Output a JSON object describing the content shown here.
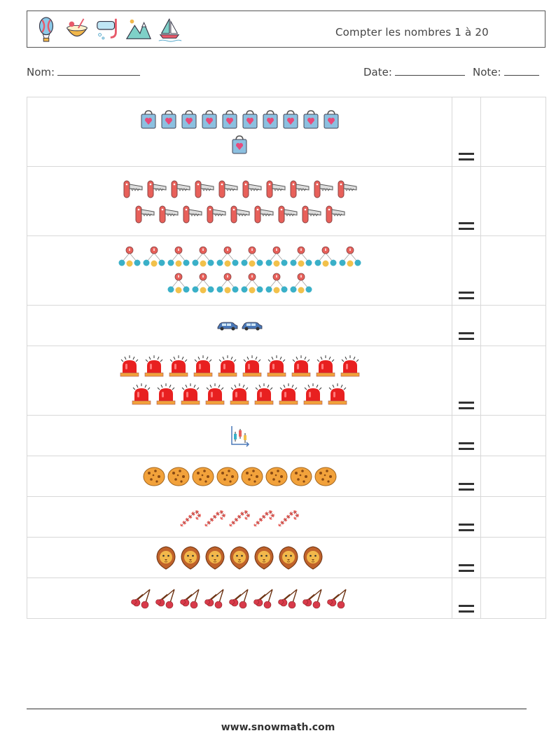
{
  "header": {
    "title": "Compter les nombres 1 à 20",
    "icons": [
      "hot-air-balloon-icon",
      "coconut-drink-icon",
      "snorkel-mask-icon",
      "mountains-icon",
      "sailboat-icon"
    ]
  },
  "fields": {
    "name_label": "Nom:",
    "date_label": "Date:",
    "note_label": "Note:"
  },
  "rows": [
    {
      "icon": "shopping-bag-icon",
      "count": 11,
      "per_line": 10
    },
    {
      "icon": "pocket-knife-icon",
      "count": 19,
      "per_line": 10
    },
    {
      "icon": "abacus-beads-icon",
      "count": 16,
      "per_line": 10
    },
    {
      "icon": "car-icon",
      "count": 2,
      "per_line": 10
    },
    {
      "icon": "siren-light-icon",
      "count": 19,
      "per_line": 10
    },
    {
      "icon": "candlestick-chart-icon",
      "count": 1,
      "per_line": 10
    },
    {
      "icon": "cookie-icon",
      "count": 8,
      "per_line": 10
    },
    {
      "icon": "candy-cane-icon",
      "count": 5,
      "per_line": 10
    },
    {
      "icon": "lion-icon",
      "count": 7,
      "per_line": 10
    },
    {
      "icon": "cherries-icon",
      "count": 9,
      "per_line": 10
    }
  ],
  "footer": {
    "url": "www.snowmath.com"
  }
}
